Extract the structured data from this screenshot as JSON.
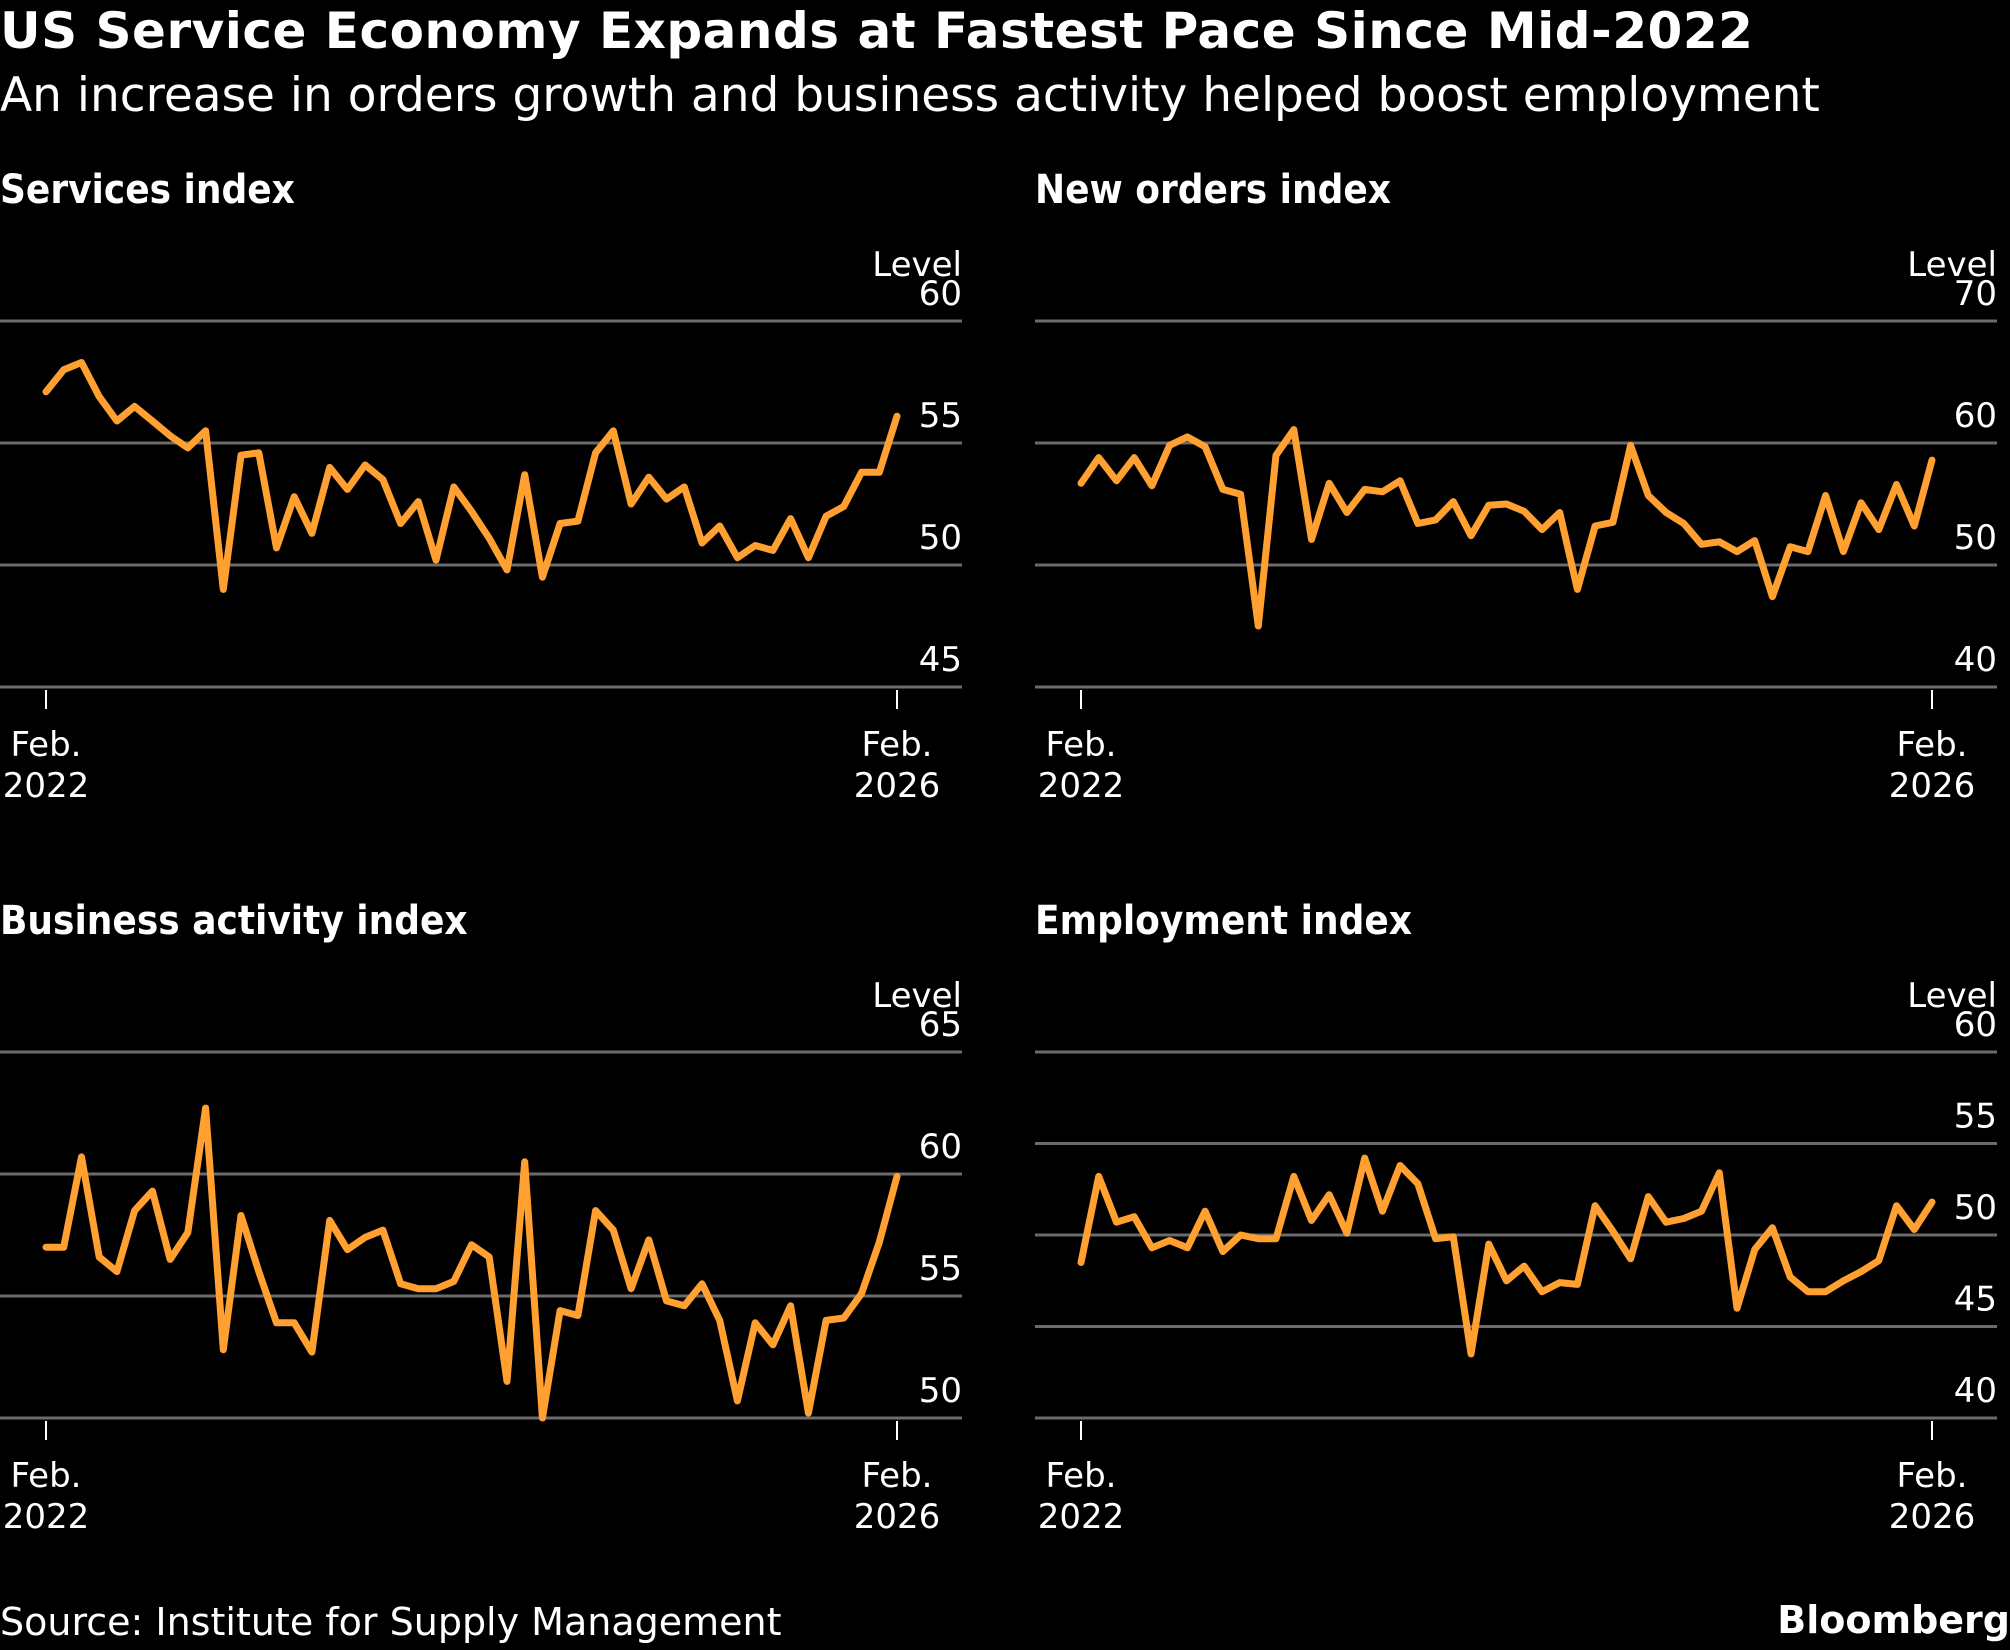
{
  "header": {
    "title": "US Service Economy Expands at Fastest Pace Since Mid-2022",
    "subtitle": "An increase in orders growth and business activity helped boost employment"
  },
  "footer": {
    "source": "Source: Institute for Supply Management",
    "brand": "Bloomberg"
  },
  "colors": {
    "background": "#000000",
    "line": "#ffa031",
    "grid": "#6b6b6b",
    "text": "#ffffff"
  },
  "chart_data": [
    {
      "type": "line",
      "title": "Services index",
      "ylabel": "Level",
      "xlabel": "",
      "ylim": [
        45,
        60
      ],
      "yticks": [
        45,
        50,
        55,
        60
      ],
      "grid": true,
      "x_start": "Feb. 2022",
      "x_end": "Feb. 2026",
      "xticks": [
        {
          "line1": "Feb.",
          "line2": "2022"
        },
        {
          "line1": "Feb.",
          "line2": "2026"
        }
      ],
      "frequency": "monthly",
      "series": [
        {
          "name": "Services index",
          "values": [
            57.1,
            58.0,
            58.3,
            56.9,
            55.9,
            56.5,
            55.9,
            55.3,
            54.8,
            55.5,
            49.0,
            54.5,
            54.6,
            50.7,
            52.8,
            51.3,
            54.0,
            53.1,
            54.1,
            53.5,
            51.7,
            52.6,
            50.2,
            53.2,
            52.2,
            51.1,
            49.8,
            53.7,
            49.5,
            51.7,
            51.8,
            54.6,
            55.5,
            52.5,
            53.6,
            52.7,
            53.2,
            50.9,
            51.6,
            50.3,
            50.8,
            50.6,
            51.9,
            50.3,
            52.0,
            52.4,
            53.8,
            53.8,
            56.1
          ]
        }
      ]
    },
    {
      "type": "line",
      "title": "New orders index",
      "ylabel": "Level",
      "xlabel": "",
      "ylim": [
        40,
        70
      ],
      "yticks": [
        40,
        50,
        60,
        70
      ],
      "grid": true,
      "x_start": "Feb. 2022",
      "x_end": "Feb. 2026",
      "xticks": [
        {
          "line1": "Feb.",
          "line2": "2022"
        },
        {
          "line1": "Feb.",
          "line2": "2026"
        }
      ],
      "frequency": "monthly",
      "series": [
        {
          "name": "New orders index",
          "values": [
            56.7,
            58.8,
            56.9,
            58.8,
            56.5,
            59.8,
            60.5,
            59.7,
            56.2,
            55.8,
            45.0,
            59.0,
            61.1,
            52.1,
            56.7,
            54.3,
            56.2,
            56.0,
            56.9,
            53.4,
            53.7,
            55.2,
            52.4,
            54.9,
            55.0,
            54.4,
            52.9,
            54.3,
            48.0,
            53.2,
            53.5,
            59.8,
            55.7,
            54.3,
            53.4,
            51.7,
            51.9,
            51.1,
            52.0,
            47.4,
            51.5,
            51.1,
            55.7,
            51.1,
            55.1,
            52.9,
            56.6,
            53.2,
            58.6
          ]
        }
      ]
    },
    {
      "type": "line",
      "title": "Business activity index",
      "ylabel": "Level",
      "xlabel": "",
      "ylim": [
        50,
        65
      ],
      "yticks": [
        50,
        55,
        60,
        65
      ],
      "grid": true,
      "x_start": "Feb. 2022",
      "x_end": "Feb. 2026",
      "xticks": [
        {
          "line1": "Feb.",
          "line2": "2022"
        },
        {
          "line1": "Feb.",
          "line2": "2026"
        }
      ],
      "frequency": "monthly",
      "series": [
        {
          "name": "Business activity index",
          "values": [
            57.0,
            57.0,
            60.7,
            56.6,
            56.0,
            58.5,
            59.3,
            56.5,
            57.6,
            62.7,
            52.8,
            58.3,
            56.0,
            53.9,
            53.9,
            52.7,
            58.1,
            56.9,
            57.4,
            57.7,
            55.5,
            55.3,
            55.3,
            55.6,
            57.1,
            56.6,
            51.5,
            60.5,
            50.0,
            54.4,
            54.2,
            58.5,
            57.7,
            55.3,
            57.3,
            54.8,
            54.6,
            55.5,
            54.0,
            50.7,
            53.9,
            53.0,
            54.6,
            50.2,
            54.0,
            54.1,
            55.1,
            57.2,
            59.9
          ]
        }
      ]
    },
    {
      "type": "line",
      "title": "Employment index",
      "ylabel": "Level",
      "xlabel": "",
      "ylim": [
        40,
        60
      ],
      "yticks": [
        40,
        45,
        50,
        55,
        60
      ],
      "grid": true,
      "x_start": "Feb. 2022",
      "x_end": "Feb. 2026",
      "xticks": [
        {
          "line1": "Feb.",
          "line2": "2022"
        },
        {
          "line1": "Feb.",
          "line2": "2026"
        }
      ],
      "frequency": "monthly",
      "series": [
        {
          "name": "Employment index",
          "values": [
            48.5,
            53.2,
            50.7,
            51.0,
            49.3,
            49.7,
            49.3,
            51.3,
            49.1,
            50.0,
            49.8,
            49.8,
            53.2,
            50.8,
            52.2,
            50.1,
            54.2,
            51.3,
            53.8,
            52.8,
            49.8,
            49.9,
            43.5,
            49.5,
            47.5,
            48.3,
            46.9,
            47.4,
            47.3,
            51.6,
            50.2,
            48.7,
            52.1,
            50.7,
            50.9,
            51.3,
            53.4,
            46.0,
            49.2,
            50.4,
            47.7,
            46.9,
            46.9,
            47.5,
            48.0,
            48.6,
            51.6,
            50.3,
            51.8
          ]
        }
      ]
    }
  ]
}
